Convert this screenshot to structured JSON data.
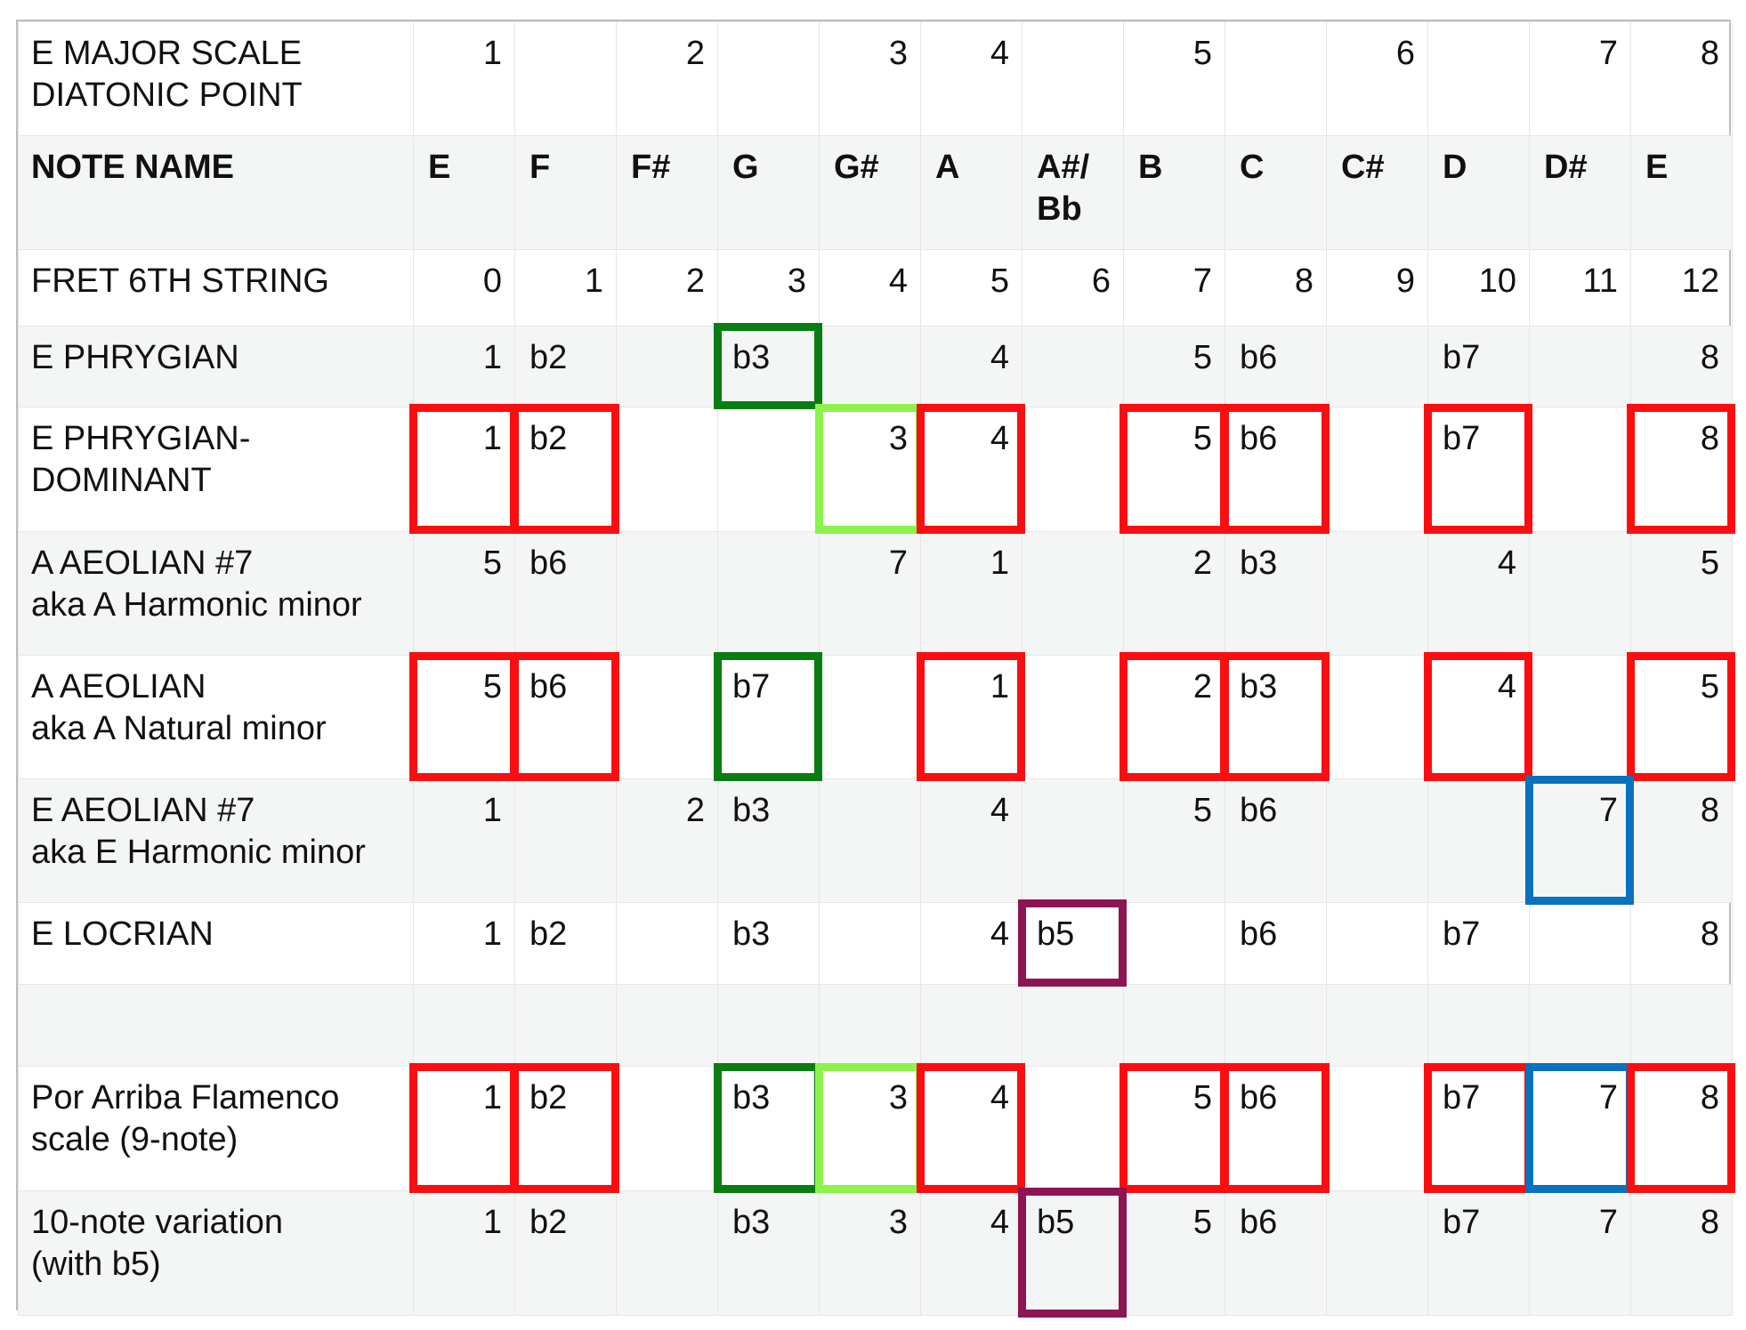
{
  "colors": {
    "red": "#fc0d10",
    "dark_green": "#0a7d12",
    "light_green": "#8cf34b",
    "blue": "#0a72bd",
    "purple": "#8e1554",
    "row_alt": "#f3f6f5",
    "grid": "#e6e6e6"
  },
  "rows": [
    {
      "label": "E MAJOR SCALE\nDIATONIC POINT",
      "cells": [
        "1",
        "",
        "2",
        "",
        "3",
        "4",
        "",
        "5",
        "",
        "6",
        "",
        "7",
        "8"
      ],
      "align": "r"
    },
    {
      "label": "NOTE NAME",
      "cells": [
        "E",
        "F",
        "F#",
        "G",
        "G#",
        "A",
        "A#/\nBb",
        "B",
        "C",
        "C#",
        "D",
        "D#",
        "E"
      ],
      "align": "l",
      "bold": true
    },
    {
      "label": "FRET 6TH STRING",
      "cells": [
        "0",
        "1",
        "2",
        "3",
        "4",
        "5",
        "6",
        "7",
        "8",
        "9",
        "10",
        "11",
        "12"
      ],
      "align": "r"
    },
    {
      "label": "E PHRYGIAN",
      "cells": [
        "1",
        "b2",
        "",
        "b3",
        "",
        "4",
        "",
        "5",
        "b6",
        "",
        "b7",
        "",
        "8"
      ]
    },
    {
      "label": "E PHRYGIAN-\nDOMINANT",
      "cells": [
        "1",
        "b2",
        "",
        "",
        "3",
        "4",
        "",
        "5",
        "b6",
        "",
        "b7",
        "",
        "8"
      ]
    },
    {
      "label": "A AEOLIAN #7\naka A Harmonic minor",
      "cells": [
        "5",
        "b6",
        "",
        "",
        "7",
        "1",
        "",
        "2",
        "b3",
        "",
        "4",
        "",
        "5"
      ]
    },
    {
      "label": "A AEOLIAN\naka A Natural minor",
      "cells": [
        "5",
        "b6",
        "",
        "b7",
        "",
        "1",
        "",
        "2",
        "b3",
        "",
        "4",
        "",
        "5"
      ]
    },
    {
      "label": "E AEOLIAN #7\naka E Harmonic minor",
      "cells": [
        "1",
        "",
        "2",
        "b3",
        "",
        "4",
        "",
        "5",
        "b6",
        "",
        "",
        "7",
        "8"
      ]
    },
    {
      "label": "E LOCRIAN",
      "cells": [
        "1",
        "b2",
        "",
        "b3",
        "",
        "4",
        "b5",
        "",
        "b6",
        "",
        "b7",
        "",
        "8"
      ]
    },
    {
      "label": "",
      "cells": [
        "",
        "",
        "",
        "",
        "",
        "",
        "",
        "",
        "",
        "",
        "",
        "",
        ""
      ]
    },
    {
      "label": "Por Arriba Flamenco\nscale (9-note)",
      "cells": [
        "1",
        "b2",
        "",
        "b3",
        "3",
        "4",
        "",
        "5",
        "b6",
        "",
        "b7",
        "7",
        "8"
      ]
    },
    {
      "label": "10-note variation\n(with b5)",
      "cells": [
        "1",
        "b2",
        "",
        "b3",
        "3",
        "4",
        "b5",
        "5",
        "b6",
        "",
        "b7",
        "7",
        "8"
      ]
    }
  ],
  "highlights": [
    {
      "row": 3,
      "col": 3,
      "color": "dark_green"
    },
    {
      "row": 4,
      "col": 0,
      "color": "red"
    },
    {
      "row": 4,
      "col": 1,
      "color": "red"
    },
    {
      "row": 4,
      "col": 4,
      "color": "light_green"
    },
    {
      "row": 4,
      "col": 5,
      "color": "red"
    },
    {
      "row": 4,
      "col": 7,
      "color": "red"
    },
    {
      "row": 4,
      "col": 8,
      "color": "red"
    },
    {
      "row": 4,
      "col": 10,
      "color": "red"
    },
    {
      "row": 4,
      "col": 12,
      "color": "red"
    },
    {
      "row": 6,
      "col": 0,
      "color": "red"
    },
    {
      "row": 6,
      "col": 1,
      "color": "red"
    },
    {
      "row": 6,
      "col": 3,
      "color": "dark_green"
    },
    {
      "row": 6,
      "col": 5,
      "color": "red"
    },
    {
      "row": 6,
      "col": 7,
      "color": "red"
    },
    {
      "row": 6,
      "col": 8,
      "color": "red"
    },
    {
      "row": 6,
      "col": 10,
      "color": "red"
    },
    {
      "row": 6,
      "col": 12,
      "color": "red"
    },
    {
      "row": 7,
      "col": 11,
      "color": "blue"
    },
    {
      "row": 8,
      "col": 6,
      "color": "purple"
    },
    {
      "row": 10,
      "col": 0,
      "color": "red"
    },
    {
      "row": 10,
      "col": 1,
      "color": "red"
    },
    {
      "row": 10,
      "col": 3,
      "color": "dark_green"
    },
    {
      "row": 10,
      "col": 4,
      "color": "light_green"
    },
    {
      "row": 10,
      "col": 5,
      "color": "red"
    },
    {
      "row": 10,
      "col": 7,
      "color": "red"
    },
    {
      "row": 10,
      "col": 8,
      "color": "red"
    },
    {
      "row": 10,
      "col": 10,
      "color": "red"
    },
    {
      "row": 10,
      "col": 11,
      "color": "blue"
    },
    {
      "row": 10,
      "col": 12,
      "color": "red"
    },
    {
      "row": 11,
      "col": 6,
      "color": "purple"
    }
  ]
}
